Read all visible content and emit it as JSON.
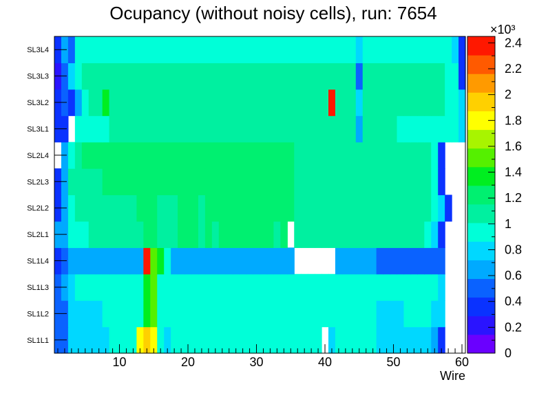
{
  "chart_data": {
    "type": "heatmap",
    "title": "Ocupancy (without noisy cells), run: 7654",
    "xlabel": "Wire",
    "ylabel": "",
    "xlim": [
      0.5,
      60.5
    ],
    "x_ticks": [
      10,
      20,
      30,
      40,
      50,
      60
    ],
    "rows": [
      "SL1L1",
      "SL1L2",
      "SL1L3",
      "SL1L4",
      "SL2L1",
      "SL2L2",
      "SL2L3",
      "SL2L4",
      "SL3L1",
      "SL3L2",
      "SL3L3",
      "SL3L4"
    ],
    "z_scale_label": "×10³",
    "z_range": [
      0,
      2.45
    ],
    "z_ticks": [
      "0",
      "0.2",
      "0.4",
      "0.6",
      "0.8",
      "1",
      "1.2",
      "1.4",
      "1.6",
      "1.8",
      "2",
      "2.2",
      "2.4"
    ],
    "palette": [
      "#6a00ff",
      "#2a14ff",
      "#0a32ff",
      "#0a62ff",
      "#00aaff",
      "#00d8ff",
      "#00ffd8",
      "#00f0a0",
      "#00f070",
      "#00ee20",
      "#55f000",
      "#a8f400",
      "#ffff00",
      "#ffd000",
      "#ff9a00",
      "#ff5a00",
      "#ff1800"
    ],
    "values_per_row": {
      "SL1L1": [
        0.45,
        0.55,
        0.8,
        0.8,
        0.8,
        0.85,
        0.8,
        0.85,
        0.9,
        0.9,
        0.95,
        0.9,
        1.75,
        1.95,
        1.8,
        0.9,
        0.8,
        1.0,
        1.0,
        1.0,
        1.0,
        1.0,
        0.95,
        0.9,
        1.0,
        1.0,
        1.0,
        1.0,
        1.0,
        1.0,
        1.0,
        1.0,
        1.0,
        1.0,
        1.0,
        1.0,
        1.0,
        1.0,
        1.0,
        0,
        0.85,
        0.9,
        0.95,
        0.95,
        0.9,
        0.9,
        0.95,
        0.8,
        0.8,
        0.8,
        0.8,
        0.8,
        0.8,
        0.8,
        0.8,
        0.6,
        0.4,
        0,
        0,
        0
      ],
      "SL1L2": [
        0.45,
        0.55,
        0.8,
        0.8,
        0.85,
        0.85,
        0.85,
        0.9,
        0.9,
        0.95,
        0.95,
        0.95,
        0.95,
        1.35,
        1.5,
        0.95,
        0.95,
        0.95,
        0.95,
        0.95,
        0.95,
        0.95,
        0.95,
        0.95,
        0.95,
        0.95,
        0.95,
        0.95,
        0.95,
        0.95,
        0.95,
        0.95,
        0.95,
        0.95,
        0.95,
        0.95,
        0.95,
        0.95,
        0.95,
        0.95,
        0.95,
        0.95,
        0.95,
        0.9,
        0.9,
        0.9,
        0.9,
        0.85,
        0.85,
        0.85,
        0.85,
        0.9,
        0.9,
        0.9,
        0.9,
        0.85,
        0.8,
        0,
        0,
        0
      ],
      "SL1L3": [
        0.45,
        0.6,
        0.85,
        0.9,
        0.95,
        0.95,
        0.95,
        0.95,
        0.95,
        1.0,
        1.0,
        1.0,
        1.0,
        1.35,
        1.5,
        1.0,
        1.0,
        1.0,
        1.0,
        1.0,
        1.0,
        1.0,
        1.0,
        1.0,
        1.0,
        1.0,
        1.0,
        1.0,
        1.0,
        1.0,
        1.0,
        1.0,
        1.0,
        1.0,
        1.0,
        1.0,
        1.0,
        1.0,
        1.0,
        1.0,
        1.0,
        1.0,
        1.0,
        1.0,
        1.0,
        1.0,
        1.0,
        0.95,
        0.95,
        0.95,
        0.95,
        0.95,
        0.95,
        0.95,
        0.95,
        0.9,
        0.85,
        0,
        0,
        0
      ],
      "SL1L4": [
        0.4,
        0.5,
        0.6,
        0.6,
        0.7,
        0.7,
        0.7,
        0.7,
        0.7,
        0.7,
        0.7,
        0.7,
        0.7,
        2.45,
        1.5,
        1.4,
        0.9,
        0.7,
        0.7,
        0.7,
        0.7,
        0.7,
        0.7,
        0.7,
        0.7,
        0.7,
        0.7,
        0.7,
        0.7,
        0.7,
        0.7,
        0.7,
        0.7,
        0.7,
        0.7,
        0,
        0,
        0,
        0,
        0,
        0,
        0.6,
        0.6,
        0.6,
        0.6,
        0.6,
        0.6,
        0.55,
        0.55,
        0.55,
        0.55,
        0.55,
        0.55,
        0.55,
        0.55,
        0.45,
        0.5,
        0,
        0,
        0
      ],
      "SL2L1": [
        0.6,
        0.7,
        1.0,
        1.0,
        1.0,
        1.05,
        1.1,
        1.05,
        1.1,
        1.1,
        1.1,
        1.1,
        1.15,
        1.2,
        1.2,
        1.15,
        1.1,
        1.15,
        1.2,
        1.2,
        1.2,
        1.15,
        1.2,
        1.15,
        1.2,
        1.2,
        1.2,
        1.2,
        1.2,
        1.2,
        1.2,
        1.2,
        1.15,
        1.2,
        0,
        1.1,
        1.1,
        1.1,
        1.1,
        1.1,
        1.1,
        1.1,
        1.1,
        1.1,
        1.1,
        1.05,
        1.05,
        1.05,
        1.05,
        1.05,
        1.05,
        1.05,
        1.05,
        1.05,
        0.9,
        0.8,
        0.3,
        0,
        0,
        0
      ],
      "SL2L2": [
        0.4,
        0.6,
        1.0,
        1.05,
        1.1,
        1.1,
        1.1,
        1.15,
        1.15,
        1.15,
        1.15,
        1.15,
        1.2,
        1.2,
        1.2,
        1.15,
        1.15,
        1.15,
        1.2,
        1.2,
        1.2,
        1.15,
        1.2,
        1.2,
        1.2,
        1.2,
        1.2,
        1.2,
        1.2,
        1.2,
        1.2,
        1.2,
        1.2,
        1.2,
        1.2,
        1.05,
        1.1,
        1.1,
        1.1,
        1.1,
        1.1,
        1.1,
        1.1,
        1.1,
        1.1,
        1.1,
        1.1,
        1.05,
        1.05,
        1.05,
        1.05,
        1.05,
        1.05,
        1.05,
        1.05,
        1.0,
        0.75,
        0.3,
        0,
        0
      ],
      "SL2L3": [
        0.4,
        0.6,
        1.05,
        1.1,
        1.15,
        1.15,
        1.15,
        1.2,
        1.2,
        1.2,
        1.2,
        1.2,
        1.2,
        1.2,
        1.25,
        1.2,
        1.2,
        1.2,
        1.2,
        1.2,
        1.2,
        1.2,
        1.2,
        1.2,
        1.2,
        1.2,
        1.2,
        1.2,
        1.2,
        1.2,
        1.2,
        1.2,
        1.2,
        1.2,
        1.2,
        1.15,
        1.15,
        1.15,
        1.15,
        1.15,
        1.15,
        1.15,
        1.15,
        1.15,
        1.15,
        1.1,
        1.1,
        1.1,
        1.1,
        1.1,
        1.1,
        1.1,
        1.1,
        1.1,
        1.05,
        0.9,
        0.4,
        0,
        0,
        0
      ],
      "SL2L4": [
        0,
        0.6,
        1.0,
        1.15,
        1.2,
        1.2,
        1.2,
        1.2,
        1.2,
        1.2,
        1.2,
        1.2,
        1.2,
        1.2,
        1.25,
        1.2,
        1.2,
        1.2,
        1.2,
        1.2,
        1.2,
        1.2,
        1.2,
        1.2,
        1.2,
        1.2,
        1.2,
        1.2,
        1.2,
        1.2,
        1.2,
        1.2,
        1.2,
        1.2,
        1.2,
        1.15,
        1.15,
        1.15,
        1.15,
        1.15,
        1.15,
        1.15,
        1.15,
        1.15,
        1.15,
        1.1,
        1.1,
        1.1,
        1.1,
        1.1,
        1.1,
        1.1,
        1.1,
        1.1,
        1.05,
        1.0,
        0.4,
        0,
        0,
        0
      ],
      "SL3L1": [
        0.3,
        0.4,
        0,
        0.9,
        0.95,
        1.0,
        1.0,
        1.0,
        1.05,
        1.05,
        1.05,
        1.05,
        1.05,
        1.05,
        1.05,
        1.05,
        1.05,
        1.05,
        1.05,
        1.1,
        1.1,
        1.1,
        1.1,
        1.1,
        1.1,
        1.1,
        1.1,
        1.1,
        1.1,
        1.1,
        1.1,
        1.1,
        1.1,
        1.1,
        1.1,
        1.1,
        1.1,
        1.1,
        1.1,
        1.1,
        1.1,
        1.1,
        1.1,
        1.1,
        0.7,
        1.05,
        1.05,
        1.05,
        1.05,
        1.05,
        1.0,
        1.0,
        1.0,
        1.0,
        1.0,
        1.0,
        1.0,
        0.95,
        0.9,
        0.85
      ],
      "SL3L2": [
        0.4,
        0.5,
        0.3,
        0.6,
        1.0,
        1.05,
        1.05,
        1.35,
        1.1,
        1.1,
        1.1,
        1.1,
        1.1,
        1.1,
        1.1,
        1.1,
        1.1,
        1.1,
        1.1,
        1.1,
        1.1,
        1.1,
        1.1,
        1.1,
        1.1,
        1.1,
        1.1,
        1.1,
        1.1,
        1.1,
        1.1,
        1.1,
        1.1,
        1.1,
        1.1,
        1.1,
        1.1,
        1.1,
        1.1,
        1.1,
        2.4,
        1.1,
        1.1,
        1.1,
        0.85,
        1.05,
        1.05,
        1.05,
        1.05,
        1.05,
        1.05,
        1.05,
        1.05,
        1.05,
        1.05,
        1.05,
        1.05,
        1.0,
        0.95,
        0.8
      ],
      "SL3L3": [
        0.25,
        0.45,
        0.85,
        1.0,
        1.05,
        1.05,
        1.1,
        1.1,
        1.1,
        1.1,
        1.1,
        1.1,
        1.1,
        1.1,
        1.1,
        1.1,
        1.1,
        1.1,
        1.1,
        1.1,
        1.1,
        1.1,
        1.1,
        1.1,
        1.1,
        1.1,
        1.1,
        1.1,
        1.1,
        1.1,
        1.1,
        1.1,
        1.1,
        1.1,
        1.1,
        1.1,
        1.1,
        1.1,
        1.1,
        1.1,
        1.1,
        1.1,
        1.1,
        1.1,
        0.5,
        1.05,
        1.05,
        1.05,
        1.05,
        1.05,
        1.05,
        1.05,
        1.05,
        1.05,
        1.05,
        1.05,
        1.05,
        1.0,
        0.95,
        0.35
      ],
      "SL3L4": [
        0.35,
        0.7,
        0.45,
        1.0,
        1.0,
        1.0,
        1.0,
        1.0,
        1.0,
        1.0,
        1.0,
        1.0,
        1.0,
        1.0,
        1.0,
        1.0,
        1.0,
        1.0,
        1.0,
        1.0,
        1.0,
        1.0,
        1.0,
        1.0,
        1.0,
        1.0,
        1.0,
        1.0,
        1.0,
        1.0,
        1.0,
        1.0,
        1.0,
        1.0,
        1.0,
        1.0,
        1.0,
        1.0,
        1.0,
        1.0,
        1.0,
        1.0,
        1.0,
        1.0,
        0.8,
        1.0,
        1.0,
        1.0,
        1.0,
        1.0,
        1.0,
        1.0,
        1.0,
        1.0,
        1.0,
        1.0,
        1.0,
        1.0,
        0.8,
        0.4
      ]
    }
  }
}
